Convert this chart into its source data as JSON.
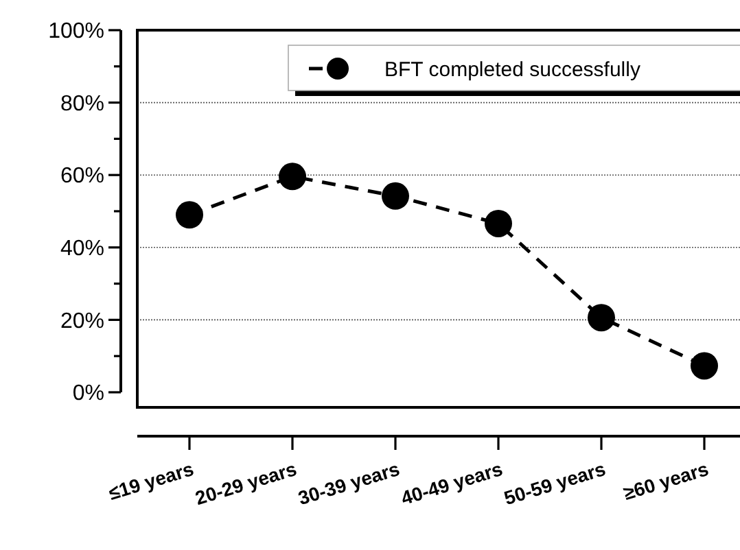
{
  "chart_data": {
    "type": "line",
    "categories": [
      "≤19 years",
      "20-29 years",
      "30-39 years",
      "40-49 years",
      "50-59 years",
      "≥60 years"
    ],
    "series": [
      {
        "name": "BFT completed successfully",
        "color": "#000000",
        "values": [
          49,
          59.6,
          54.2,
          46.6,
          20.6,
          7.3
        ]
      }
    ],
    "ylim": [
      0,
      100
    ],
    "yticks": [
      {
        "value": 0,
        "label": "0%"
      },
      {
        "value": 10,
        "label": null
      },
      {
        "value": 20,
        "label": "20%"
      },
      {
        "value": 30,
        "label": null
      },
      {
        "value": 40,
        "label": "40%"
      },
      {
        "value": 50,
        "label": null
      },
      {
        "value": 60,
        "label": "60%"
      },
      {
        "value": 70,
        "label": null
      },
      {
        "value": 80,
        "label": "80%"
      },
      {
        "value": 90,
        "label": null
      },
      {
        "value": 100,
        "label": "100%"
      }
    ],
    "grid": "y",
    "legend": "top right",
    "marker": "circle",
    "line_style": "dashed"
  }
}
